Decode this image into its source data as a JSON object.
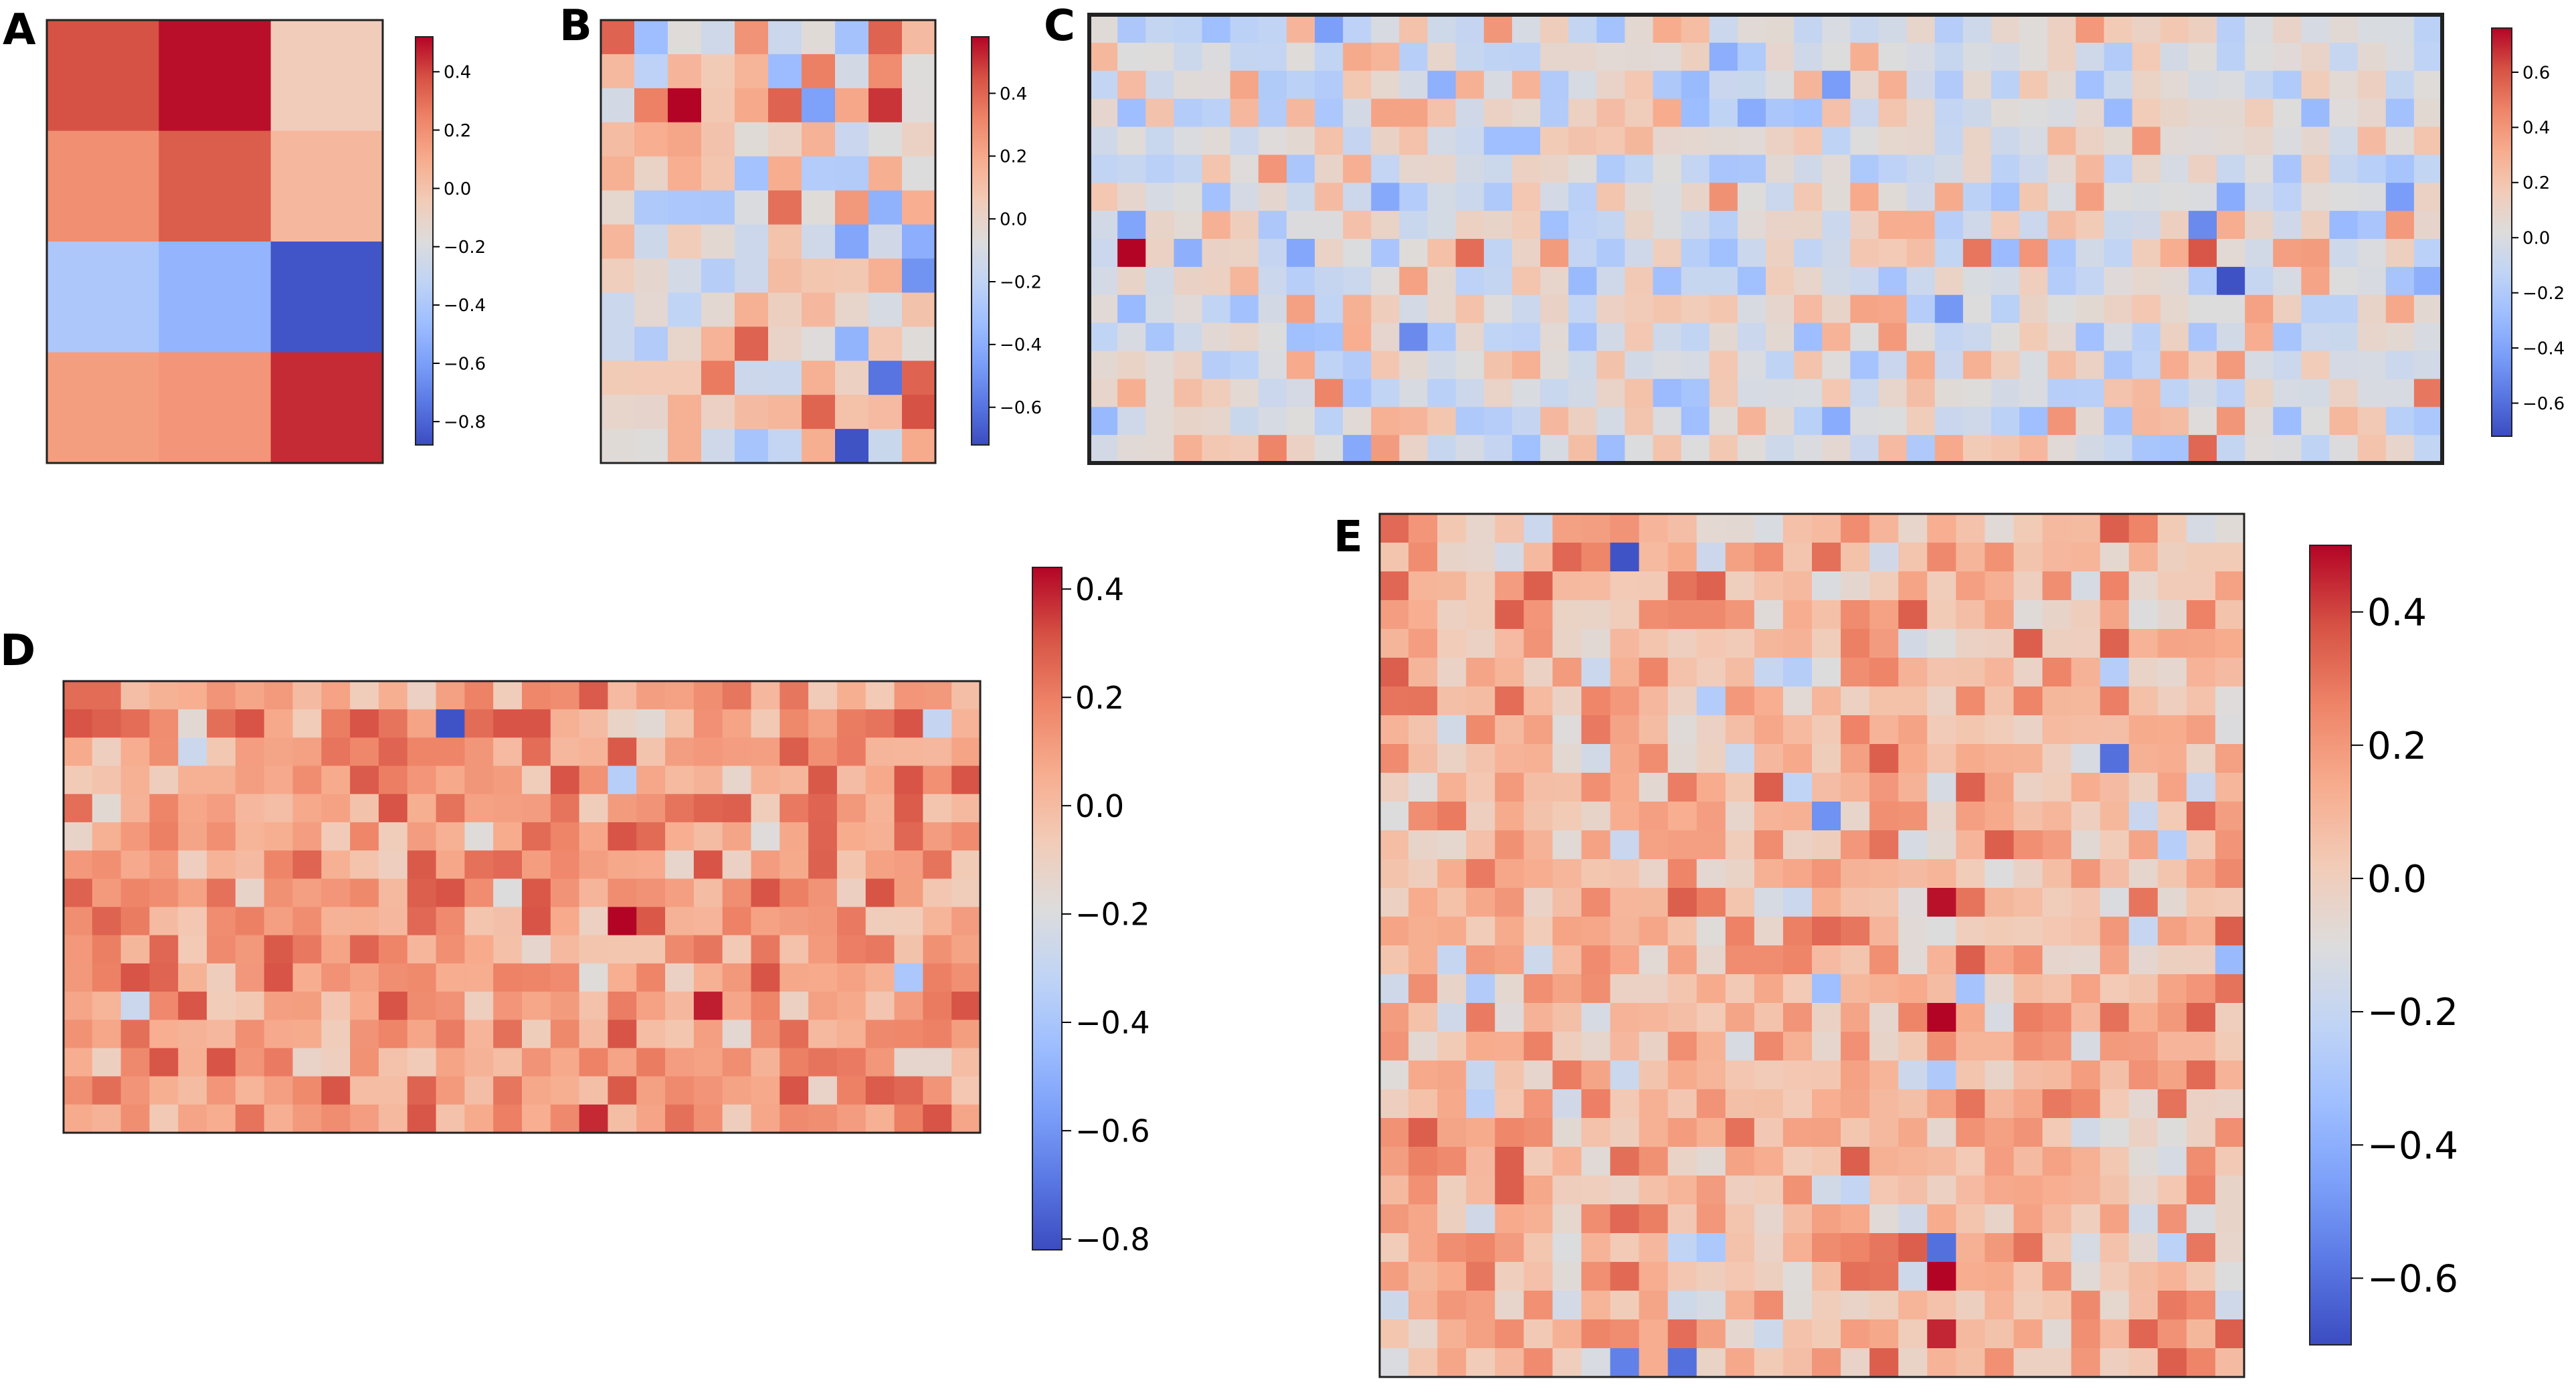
{
  "figure": {
    "description": "Five heatmaps (A–E) of weights with coolwarm colormap and colorbars",
    "colormap": {
      "name": "coolwarm",
      "stops": [
        "#3b4cc0",
        "#5977e3",
        "#7b9ff9",
        "#9ebeff",
        "#c0d4f5",
        "#dddcdc",
        "#f2cbb7",
        "#f7ac8e",
        "#ee8468",
        "#d65244",
        "#b40426"
      ]
    },
    "frame_color": "#222222"
  },
  "chart_data": [
    {
      "type": "heatmap",
      "panel": "A",
      "label": "A",
      "rows": 4,
      "cols": 3,
      "values": [
        [
          0.38,
          0.5,
          -0.05
        ],
        [
          0.2,
          0.35,
          0.05
        ],
        [
          -0.4,
          -0.5,
          -0.85
        ],
        [
          0.15,
          0.18,
          0.45
        ]
      ],
      "vmin": -0.88,
      "vmax": 0.52,
      "colorbar_ticks": [
        0.4,
        0.2,
        0.0,
        -0.2,
        -0.4,
        -0.6,
        -0.8
      ],
      "colorbar_tick_labels": [
        "0.4",
        "0.2",
        "0.0",
        "−0.2",
        "−0.4",
        "−0.6",
        "−0.8"
      ],
      "random_seed": 101
    },
    {
      "type": "heatmap",
      "panel": "B",
      "label": "B",
      "rows": 13,
      "cols": 10,
      "vmin": -0.72,
      "vmax": 0.58,
      "mean": 0.02,
      "spread": 0.2,
      "colorbar_ticks": [
        0.4,
        0.2,
        0.0,
        -0.2,
        -0.4,
        -0.6
      ],
      "colorbar_tick_labels": [
        "0.4",
        "0.2",
        "0.0",
        "−0.2",
        "−0.4",
        "−0.6"
      ],
      "random_seed": 202,
      "extremes": [
        {
          "r": 2,
          "c": 2,
          "v": 0.58
        },
        {
          "r": 2,
          "c": 8,
          "v": 0.5
        },
        {
          "r": 2,
          "c": 6,
          "v": -0.45
        },
        {
          "r": 7,
          "c": 9,
          "v": -0.5
        },
        {
          "r": 10,
          "c": 8,
          "v": -0.6
        },
        {
          "r": 12,
          "c": 7,
          "v": -0.7
        },
        {
          "r": 11,
          "c": 9,
          "v": 0.45
        }
      ]
    },
    {
      "type": "heatmap",
      "panel": "C",
      "label": "C",
      "rows": 16,
      "cols": 48,
      "vmin": -0.72,
      "vmax": 0.76,
      "mean": 0.02,
      "spread": 0.16,
      "colorbar_ticks": [
        0.6,
        0.4,
        0.2,
        0.0,
        -0.2,
        -0.4,
        -0.6
      ],
      "colorbar_tick_labels": [
        "0.6",
        "0.4",
        "0.2",
        "0.0",
        "−0.2",
        "−0.4",
        "−0.6"
      ],
      "random_seed": 303,
      "extremes": [
        {
          "r": 8,
          "c": 1,
          "v": 0.76
        },
        {
          "r": 8,
          "c": 39,
          "v": 0.6
        },
        {
          "r": 9,
          "c": 40,
          "v": -0.7
        },
        {
          "r": 7,
          "c": 39,
          "v": -0.5
        },
        {
          "r": 15,
          "c": 39,
          "v": 0.55
        },
        {
          "r": 11,
          "c": 11,
          "v": -0.5
        },
        {
          "r": 10,
          "c": 30,
          "v": -0.45
        }
      ]
    },
    {
      "type": "heatmap",
      "panel": "D",
      "label": "D",
      "rows": 16,
      "cols": 32,
      "vmin": -0.82,
      "vmax": 0.44,
      "mean": 0.1,
      "spread": 0.13,
      "colorbar_ticks": [
        0.4,
        0.2,
        0.0,
        -0.2,
        -0.4,
        -0.6,
        -0.8
      ],
      "colorbar_tick_labels": [
        "0.4",
        "0.2",
        "0.0",
        "−0.2",
        "−0.4",
        "−0.6",
        "−0.8"
      ],
      "random_seed": 404,
      "extremes": [
        {
          "r": 8,
          "c": 19,
          "v": 0.44
        },
        {
          "r": 11,
          "c": 22,
          "v": 0.4
        },
        {
          "r": 1,
          "c": 13,
          "v": -0.8
        },
        {
          "r": 15,
          "c": 18,
          "v": 0.38
        },
        {
          "r": 3,
          "c": 19,
          "v": -0.35
        }
      ]
    },
    {
      "type": "heatmap",
      "panel": "E",
      "label": "E",
      "rows": 30,
      "cols": 30,
      "vmin": -0.7,
      "vmax": 0.5,
      "mean": 0.08,
      "spread": 0.14,
      "colorbar_ticks": [
        0.4,
        0.2,
        0.0,
        -0.2,
        -0.4,
        -0.6
      ],
      "colorbar_tick_labels": [
        "0.4",
        "0.2",
        "0.0",
        "−0.2",
        "−0.4",
        "−0.6"
      ],
      "random_seed": 505,
      "extremes": [
        {
          "r": 13,
          "c": 19,
          "v": 0.48
        },
        {
          "r": 17,
          "c": 19,
          "v": 0.5
        },
        {
          "r": 26,
          "c": 19,
          "v": 0.5
        },
        {
          "r": 25,
          "c": 19,
          "v": -0.6
        },
        {
          "r": 28,
          "c": 19,
          "v": 0.45
        },
        {
          "r": 1,
          "c": 8,
          "v": -0.68
        },
        {
          "r": 8,
          "c": 25,
          "v": -0.6
        },
        {
          "r": 29,
          "c": 10,
          "v": -0.6
        },
        {
          "r": 29,
          "c": 8,
          "v": -0.55
        },
        {
          "r": 10,
          "c": 15,
          "v": -0.5
        }
      ]
    }
  ]
}
